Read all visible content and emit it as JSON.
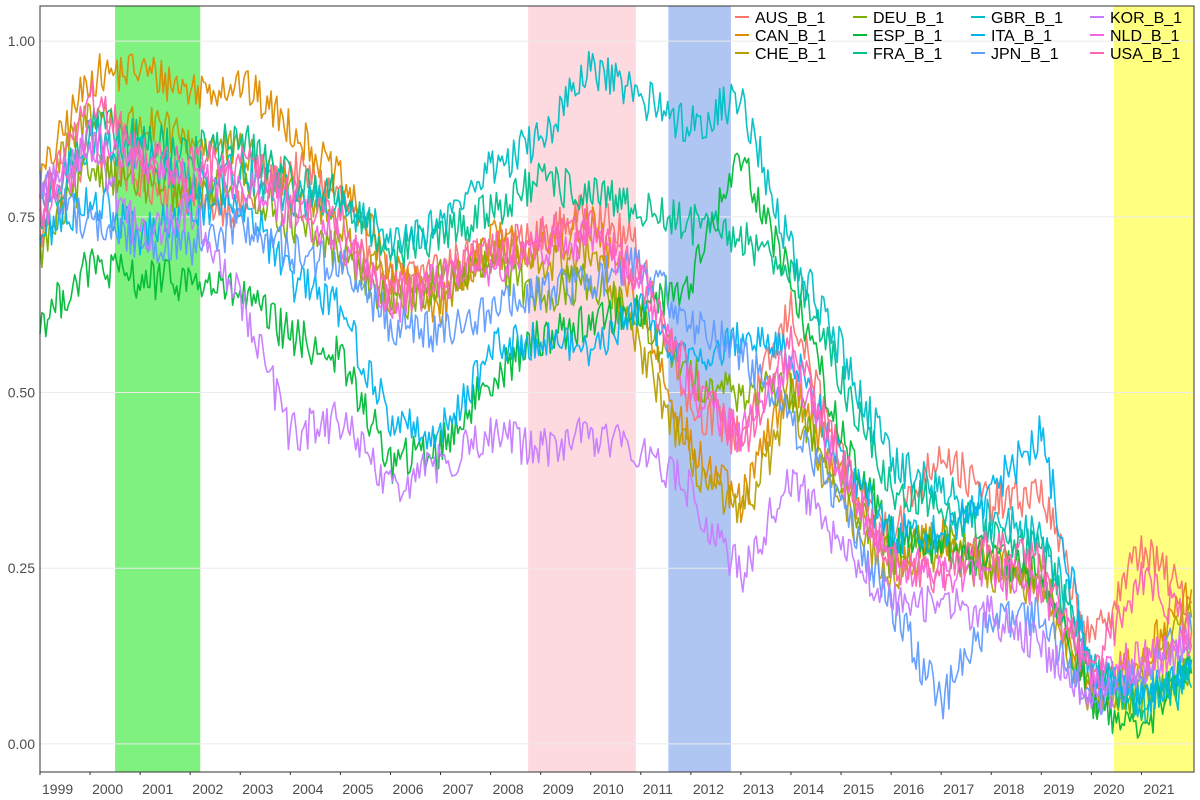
{
  "chart_data": {
    "type": "line",
    "title": "",
    "xlabel": "",
    "ylabel": "",
    "xlim": [
      1999.0,
      2022.05
    ],
    "ylim": [
      -0.04,
      1.05
    ],
    "grid": true,
    "legend_position": "top-right",
    "x_ticks": [
      {
        "label": "1999",
        "value": 1999.0
      },
      {
        "label": "2000",
        "value": 2000.0
      },
      {
        "label": "2001",
        "value": 2001.0
      },
      {
        "label": "2002",
        "value": 2002.0
      },
      {
        "label": "2003",
        "value": 2003.0
      },
      {
        "label": "2004",
        "value": 2004.0
      },
      {
        "label": "2005",
        "value": 2005.0
      },
      {
        "label": "2006",
        "value": 2006.0
      },
      {
        "label": "2007",
        "value": 2007.0
      },
      {
        "label": "2008",
        "value": 2008.0
      },
      {
        "label": "2009",
        "value": 2009.0
      },
      {
        "label": "2010",
        "value": 2010.0
      },
      {
        "label": "2011",
        "value": 2011.0
      },
      {
        "label": "2012",
        "value": 2012.0
      },
      {
        "label": "2013",
        "value": 2013.0
      },
      {
        "label": "2014",
        "value": 2014.0
      },
      {
        "label": "2015",
        "value": 2015.0
      },
      {
        "label": "2016",
        "value": 2016.0
      },
      {
        "label": "2017",
        "value": 2017.0
      },
      {
        "label": "2018",
        "value": 2018.0
      },
      {
        "label": "2019",
        "value": 2019.0
      },
      {
        "label": "2020",
        "value": 2020.0
      },
      {
        "label": "2021",
        "value": 2021.0
      }
    ],
    "y_ticks": [
      {
        "label": "0.00",
        "value": 0.0
      },
      {
        "label": "0.25",
        "value": 0.25
      },
      {
        "label": "0.50",
        "value": 0.5
      },
      {
        "label": "0.75",
        "value": 0.75
      },
      {
        "label": "1.00",
        "value": 1.0
      }
    ],
    "shaded_periods": [
      {
        "start": 2000.5,
        "end": 2002.2,
        "color": "#7ef17e"
      },
      {
        "start": 2008.75,
        "end": 2010.9,
        "color": "#fdd9e0"
      },
      {
        "start": 2011.55,
        "end": 2012.8,
        "color": "#b0c6f2"
      },
      {
        "start": 2020.45,
        "end": 2022.05,
        "color": "#ffff80"
      }
    ],
    "series": [
      {
        "name": "AUS_B_1",
        "color": "#F8766D",
        "x": [
          1999.0,
          2000.0,
          2001.0,
          2002.0,
          2003.0,
          2004.0,
          2005.0,
          2006.0,
          2007.0,
          2008.0,
          2009.0,
          2010.0,
          2011.0,
          2012.0,
          2013.0,
          2014.0,
          2015.0,
          2016.0,
          2017.0,
          2018.0,
          2019.0,
          2020.0,
          2021.0,
          2022.0
        ],
        "values": [
          0.72,
          0.85,
          0.8,
          0.78,
          0.76,
          0.82,
          0.78,
          0.66,
          0.68,
          0.7,
          0.72,
          0.76,
          0.7,
          0.48,
          0.44,
          0.62,
          0.4,
          0.3,
          0.42,
          0.34,
          0.36,
          0.14,
          0.28,
          0.2
        ]
      },
      {
        "name": "CAN_B_1",
        "color": "#DE8C00",
        "x": [
          1999.0,
          2000.0,
          2001.0,
          2002.0,
          2003.0,
          2004.0,
          2005.0,
          2006.0,
          2007.0,
          2008.0,
          2009.0,
          2010.0,
          2011.0,
          2012.0,
          2013.0,
          2014.0,
          2015.0,
          2016.0,
          2017.0,
          2018.0,
          2019.0,
          2020.0,
          2021.0,
          2022.0
        ],
        "values": [
          0.8,
          0.95,
          0.96,
          0.93,
          0.94,
          0.88,
          0.8,
          0.68,
          0.62,
          0.72,
          0.7,
          0.74,
          0.62,
          0.42,
          0.34,
          0.52,
          0.38,
          0.26,
          0.3,
          0.26,
          0.22,
          0.08,
          0.12,
          0.22
        ]
      },
      {
        "name": "CHE_B_1",
        "color": "#B79F00",
        "x": [
          1999.0,
          2000.0,
          2001.0,
          2002.0,
          2003.0,
          2004.0,
          2005.0,
          2006.0,
          2007.0,
          2008.0,
          2009.0,
          2010.0,
          2011.0,
          2012.0,
          2013.0,
          2014.0,
          2015.0,
          2016.0,
          2017.0,
          2018.0,
          2019.0,
          2020.0,
          2021.0,
          2022.0
        ],
        "values": [
          0.78,
          0.9,
          0.88,
          0.86,
          0.84,
          0.8,
          0.74,
          0.64,
          0.64,
          0.7,
          0.68,
          0.7,
          0.56,
          0.4,
          0.32,
          0.48,
          0.34,
          0.24,
          0.28,
          0.24,
          0.22,
          0.06,
          0.1,
          0.18
        ]
      },
      {
        "name": "DEU_B_1",
        "color": "#7CAE00",
        "x": [
          1999.0,
          2000.0,
          2001.0,
          2002.0,
          2003.0,
          2004.0,
          2005.0,
          2006.0,
          2007.0,
          2008.0,
          2009.0,
          2010.0,
          2011.0,
          2012.0,
          2013.0,
          2014.0,
          2015.0,
          2016.0,
          2017.0,
          2018.0,
          2019.0,
          2020.0,
          2021.0,
          2022.0
        ],
        "values": [
          0.7,
          0.82,
          0.8,
          0.78,
          0.8,
          0.74,
          0.7,
          0.62,
          0.66,
          0.68,
          0.64,
          0.66,
          0.6,
          0.52,
          0.5,
          0.5,
          0.36,
          0.26,
          0.3,
          0.26,
          0.24,
          0.08,
          0.06,
          0.1
        ]
      },
      {
        "name": "ESP_B_1",
        "color": "#00BA38",
        "x": [
          1999.0,
          2000.0,
          2001.0,
          2002.0,
          2003.0,
          2004.0,
          2005.0,
          2006.0,
          2007.0,
          2008.0,
          2009.0,
          2010.0,
          2011.0,
          2012.0,
          2013.0,
          2014.0,
          2015.0,
          2016.0,
          2017.0,
          2018.0,
          2019.0,
          2020.0,
          2021.0,
          2022.0
        ],
        "values": [
          0.6,
          0.68,
          0.66,
          0.66,
          0.64,
          0.58,
          0.55,
          0.4,
          0.42,
          0.52,
          0.58,
          0.6,
          0.62,
          0.66,
          0.84,
          0.66,
          0.44,
          0.3,
          0.28,
          0.26,
          0.24,
          0.06,
          0.02,
          0.12
        ]
      },
      {
        "name": "FRA_B_1",
        "color": "#00C08B",
        "x": [
          1999.0,
          2000.0,
          2001.0,
          2002.0,
          2003.0,
          2004.0,
          2005.0,
          2006.0,
          2007.0,
          2008.0,
          2009.0,
          2010.0,
          2011.0,
          2012.0,
          2013.0,
          2014.0,
          2015.0,
          2016.0,
          2017.0,
          2018.0,
          2019.0,
          2020.0,
          2021.0,
          2022.0
        ],
        "values": [
          0.74,
          0.88,
          0.86,
          0.84,
          0.86,
          0.8,
          0.78,
          0.7,
          0.72,
          0.76,
          0.8,
          0.78,
          0.76,
          0.74,
          0.72,
          0.68,
          0.52,
          0.36,
          0.34,
          0.3,
          0.28,
          0.1,
          0.06,
          0.1
        ]
      },
      {
        "name": "GBR_B_1",
        "color": "#00BFC4",
        "x": [
          1999.0,
          2000.0,
          2001.0,
          2002.0,
          2003.0,
          2004.0,
          2005.0,
          2006.0,
          2007.0,
          2008.0,
          2009.0,
          2010.0,
          2011.0,
          2012.0,
          2013.0,
          2014.0,
          2015.0,
          2016.0,
          2017.0,
          2018.0,
          2019.0,
          2020.0,
          2021.0,
          2022.0
        ],
        "values": [
          0.76,
          0.86,
          0.84,
          0.8,
          0.82,
          0.78,
          0.76,
          0.72,
          0.74,
          0.82,
          0.86,
          0.96,
          0.92,
          0.88,
          0.92,
          0.7,
          0.56,
          0.4,
          0.36,
          0.32,
          0.3,
          0.12,
          0.06,
          0.08
        ]
      },
      {
        "name": "ITA_B_1",
        "color": "#00B4F0",
        "x": [
          1999.0,
          2000.0,
          2001.0,
          2002.0,
          2003.0,
          2004.0,
          2005.0,
          2006.0,
          2007.0,
          2008.0,
          2009.0,
          2010.0,
          2011.0,
          2012.0,
          2013.0,
          2014.0,
          2015.0,
          2016.0,
          2017.0,
          2018.0,
          2019.0,
          2020.0,
          2021.0,
          2022.0
        ],
        "values": [
          0.72,
          0.78,
          0.72,
          0.76,
          0.78,
          0.66,
          0.62,
          0.46,
          0.44,
          0.56,
          0.58,
          0.56,
          0.62,
          0.54,
          0.58,
          0.56,
          0.4,
          0.3,
          0.3,
          0.36,
          0.44,
          0.1,
          0.06,
          0.12
        ]
      },
      {
        "name": "JPN_B_1",
        "color": "#619CFF",
        "x": [
          1999.0,
          2000.0,
          2001.0,
          2002.0,
          2003.0,
          2004.0,
          2005.0,
          2006.0,
          2007.0,
          2008.0,
          2009.0,
          2010.0,
          2011.0,
          2012.0,
          2013.0,
          2014.0,
          2015.0,
          2016.0,
          2017.0,
          2018.0,
          2019.0,
          2020.0,
          2021.0,
          2022.0
        ],
        "values": [
          0.8,
          0.74,
          0.72,
          0.7,
          0.74,
          0.7,
          0.68,
          0.6,
          0.58,
          0.62,
          0.64,
          0.66,
          0.68,
          0.6,
          0.56,
          0.46,
          0.34,
          0.2,
          0.06,
          0.18,
          0.18,
          0.06,
          0.1,
          0.16
        ]
      },
      {
        "name": "KOR_B_1",
        "color": "#C77CFF",
        "x": [
          1999.0,
          2000.0,
          2001.0,
          2002.0,
          2003.0,
          2004.0,
          2005.0,
          2006.0,
          2007.0,
          2008.0,
          2009.0,
          2010.0,
          2011.0,
          2012.0,
          2013.0,
          2014.0,
          2015.0,
          2016.0,
          2017.0,
          2018.0,
          2019.0,
          2020.0,
          2021.0,
          2022.0
        ],
        "values": [
          0.78,
          0.86,
          0.72,
          0.76,
          0.64,
          0.44,
          0.46,
          0.36,
          0.4,
          0.44,
          0.42,
          0.44,
          0.42,
          0.36,
          0.24,
          0.38,
          0.28,
          0.2,
          0.2,
          0.18,
          0.14,
          0.06,
          0.1,
          0.14
        ]
      },
      {
        "name": "NLD_B_1",
        "color": "#F564E3",
        "x": [
          1999.0,
          2000.0,
          2001.0,
          2002.0,
          2003.0,
          2004.0,
          2005.0,
          2006.0,
          2007.0,
          2008.0,
          2009.0,
          2010.0,
          2011.0,
          2012.0,
          2013.0,
          2014.0,
          2015.0,
          2016.0,
          2017.0,
          2018.0,
          2019.0,
          2020.0,
          2021.0,
          2022.0
        ],
        "values": [
          0.74,
          0.86,
          0.82,
          0.8,
          0.8,
          0.76,
          0.72,
          0.62,
          0.66,
          0.68,
          0.7,
          0.72,
          0.66,
          0.5,
          0.44,
          0.54,
          0.38,
          0.26,
          0.24,
          0.24,
          0.22,
          0.1,
          0.12,
          0.14
        ]
      },
      {
        "name": "USA_B_1",
        "color": "#FF64B0",
        "x": [
          1999.0,
          2000.0,
          2001.0,
          2002.0,
          2003.0,
          2004.0,
          2005.0,
          2006.0,
          2007.0,
          2008.0,
          2009.0,
          2010.0,
          2011.0,
          2012.0,
          2013.0,
          2014.0,
          2015.0,
          2016.0,
          2017.0,
          2018.0,
          2019.0,
          2020.0,
          2021.0,
          2022.0
        ],
        "values": [
          0.76,
          0.92,
          0.84,
          0.82,
          0.84,
          0.78,
          0.74,
          0.64,
          0.66,
          0.7,
          0.72,
          0.74,
          0.66,
          0.52,
          0.42,
          0.58,
          0.4,
          0.26,
          0.24,
          0.28,
          0.26,
          0.1,
          0.24,
          0.16
        ]
      }
    ]
  }
}
